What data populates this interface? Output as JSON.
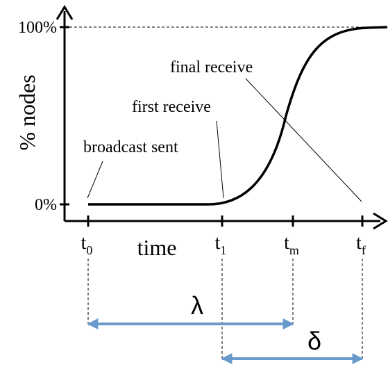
{
  "chart_data": {
    "type": "line",
    "xlabel": "time",
    "ylabel": "% nodes",
    "y_ticks": [
      "0%",
      "100%"
    ],
    "x_ticks": [
      {
        "base": "t",
        "sub": "0"
      },
      {
        "base": "t",
        "sub": "1"
      },
      {
        "base": "t",
        "sub": "m"
      },
      {
        "base": "t",
        "sub": "f"
      }
    ],
    "series": [
      {
        "points": [
          [
            0,
            0
          ],
          [
            1,
            0
          ],
          [
            2,
            50
          ],
          [
            3,
            100
          ]
        ]
      }
    ],
    "annotations": {
      "broadcast_sent": "broadcast sent",
      "first_receive": "first receive",
      "final_receive": "final receive"
    },
    "intervals": {
      "lambda": {
        "label": "λ",
        "from": "t0",
        "to": "tm"
      },
      "delta": {
        "label": "δ",
        "from": "t1",
        "to": "tf"
      }
    },
    "colors": {
      "axis": "#000000",
      "curve": "#000000",
      "interval_arrow": "#6a9acb"
    }
  }
}
